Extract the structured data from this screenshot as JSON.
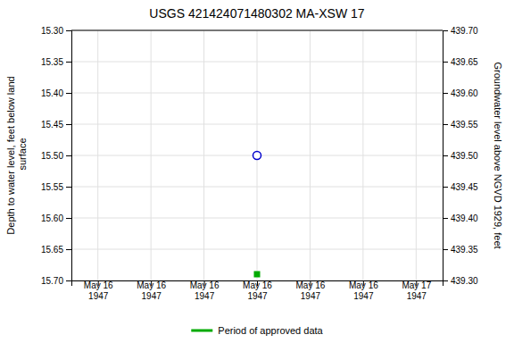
{
  "chart_data": {
    "type": "scatter",
    "title": "USGS 421424071480302 MA-XSW   17",
    "ylabel": "Depth to water level, feet below land\n surface",
    "y2label": "Groundwater level above NGVD 1929, feet",
    "categories": [
      "May 16\n1947",
      "May 16\n1947",
      "May 16\n1947",
      "May 16\n1947",
      "May 16\n1947",
      "May 16\n1947",
      "May 17\n1947"
    ],
    "series": [
      {
        "color": "#0000cc",
        "marker": "circle",
        "values": [
          null,
          null,
          null,
          15.5,
          null,
          null,
          null
        ]
      },
      {
        "name": "Period of approved data",
        "color": "#00aa00",
        "marker": "square",
        "values": [
          null,
          null,
          null,
          15.69,
          null,
          null,
          null
        ]
      }
    ],
    "ylim": [
      15.7,
      15.3
    ],
    "yticks": [
      {
        "value": 15.3,
        "label": "15.30"
      },
      15.35,
      {
        "value": 15.4,
        "label": "15.40"
      },
      15.45,
      {
        "value": 15.5,
        "label": "15.50"
      },
      15.55,
      {
        "value": 15.6,
        "label": "15.60"
      },
      15.65,
      {
        "value": 15.7,
        "label": "15.70"
      }
    ],
    "y2lim": [
      439.3,
      439.7
    ],
    "y2ticks": [
      {
        "value": 439.7,
        "label": "439.70"
      },
      439.65,
      {
        "value": 439.6,
        "label": "439.60"
      },
      439.55,
      {
        "value": 439.5,
        "label": "439.50"
      },
      439.45,
      {
        "value": 439.4,
        "label": "439.40"
      },
      439.35,
      {
        "value": 439.3,
        "label": "439.30"
      }
    ],
    "grid": true,
    "legend": "bottom"
  }
}
